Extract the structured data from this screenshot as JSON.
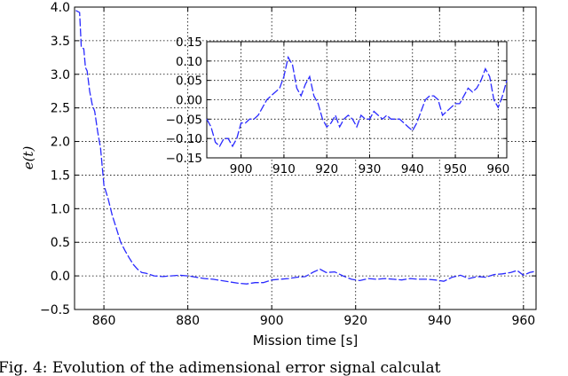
{
  "chart_data": [
    {
      "type": "line",
      "xlabel": "Mission time [s]",
      "ylabel": "e(t)",
      "xlim": [
        853,
        963
      ],
      "ylim": [
        -0.5,
        4.0
      ],
      "xticks": [
        860,
        880,
        900,
        920,
        940,
        960
      ],
      "xtick_labels": [
        "860",
        "880",
        "900",
        "920",
        "940",
        "960"
      ],
      "yticks": [
        -0.5,
        0.0,
        0.5,
        1.0,
        1.5,
        2.0,
        2.5,
        3.0,
        3.5,
        4.0
      ],
      "ytick_labels": [
        "−0.5",
        "0.0",
        "0.5",
        "1.0",
        "1.5",
        "2.0",
        "2.5",
        "3.0",
        "3.5",
        "4.0"
      ],
      "grid": true,
      "color": "#2a2aff",
      "x": [
        853.3,
        854.2,
        854.6,
        855.2,
        855.6,
        856.0,
        856.6,
        857.2,
        857.8,
        858.5,
        859.2,
        860.0,
        861.0,
        862.0,
        863.0,
        864.0,
        865.0,
        866.0,
        867.0,
        868.0,
        869.0,
        870.0,
        871.0,
        872.0,
        874.0,
        876.0,
        878.0,
        880.0,
        882.0,
        884.0,
        886.0,
        888.0,
        890.0,
        892.0,
        894.0,
        896.0,
        898.0,
        900.0,
        902.0,
        904.0,
        906.0,
        908.0,
        910.0,
        911.5,
        913.0,
        915.0,
        917.0,
        919.0,
        921.0,
        923.0,
        925.0,
        927.0,
        929.0,
        931.0,
        933.0,
        935.0,
        937.0,
        939.0,
        941.0,
        943.0,
        945.0,
        947.0,
        949.0,
        951.0,
        953.0,
        955.0,
        957.0,
        958.5,
        960.0,
        961.5,
        963.0
      ],
      "y": [
        3.95,
        3.92,
        3.4,
        3.38,
        3.1,
        3.05,
        2.75,
        2.55,
        2.45,
        2.15,
        1.9,
        1.35,
        1.15,
        0.9,
        0.7,
        0.5,
        0.38,
        0.27,
        0.17,
        0.1,
        0.05,
        0.04,
        0.02,
        0.0,
        -0.01,
        0.0,
        0.01,
        0.0,
        -0.02,
        -0.04,
        -0.05,
        -0.07,
        -0.09,
        -0.11,
        -0.12,
        -0.1,
        -0.1,
        -0.06,
        -0.05,
        -0.04,
        -0.02,
        -0.01,
        0.06,
        0.1,
        0.05,
        0.06,
        0.0,
        -0.05,
        -0.07,
        -0.04,
        -0.05,
        -0.04,
        -0.05,
        -0.06,
        -0.04,
        -0.05,
        -0.05,
        -0.06,
        -0.08,
        -0.02,
        0.01,
        -0.04,
        -0.01,
        -0.02,
        0.02,
        0.03,
        0.05,
        0.08,
        0.01,
        0.05,
        0.07
      ]
    },
    {
      "type": "line",
      "xlim": [
        892,
        962
      ],
      "ylim": [
        -0.15,
        0.15
      ],
      "xticks": [
        900,
        910,
        920,
        930,
        940,
        950,
        960
      ],
      "xtick_labels": [
        "900",
        "910",
        "920",
        "930",
        "940",
        "950",
        "960"
      ],
      "yticks": [
        -0.15,
        -0.1,
        -0.05,
        0.0,
        0.05,
        0.1,
        0.15
      ],
      "ytick_labels": [
        "−0.15",
        "−0.10",
        "−0.05",
        "0.00",
        "0.05",
        "0.10",
        "0.15"
      ],
      "grid": true,
      "color": "#2a2aff",
      "x": [
        892.0,
        893.0,
        894.0,
        895.0,
        896.0,
        897.0,
        898.0,
        899.0,
        900.0,
        901.0,
        902.0,
        903.0,
        904.0,
        905.0,
        906.0,
        907.0,
        908.0,
        909.0,
        910.0,
        911.0,
        912.0,
        913.0,
        914.0,
        915.0,
        916.0,
        917.0,
        918.0,
        919.0,
        920.0,
        921.0,
        922.0,
        923.0,
        924.0,
        925.0,
        926.0,
        927.0,
        928.0,
        929.0,
        930.0,
        931.0,
        932.0,
        933.0,
        934.0,
        935.0,
        936.0,
        937.0,
        938.0,
        939.0,
        940.0,
        941.0,
        942.0,
        943.0,
        944.0,
        945.0,
        946.0,
        947.0,
        948.0,
        949.0,
        950.0,
        951.0,
        952.0,
        953.0,
        954.0,
        955.0,
        956.0,
        957.0,
        958.0,
        959.0,
        960.0,
        961.0,
        962.0
      ],
      "y": [
        -0.05,
        -0.07,
        -0.11,
        -0.12,
        -0.1,
        -0.1,
        -0.12,
        -0.1,
        -0.06,
        -0.06,
        -0.05,
        -0.05,
        -0.04,
        -0.02,
        0.0,
        0.01,
        0.02,
        0.03,
        0.06,
        0.11,
        0.09,
        0.03,
        0.01,
        0.04,
        0.06,
        0.01,
        -0.01,
        -0.05,
        -0.07,
        -0.06,
        -0.04,
        -0.07,
        -0.05,
        -0.04,
        -0.05,
        -0.07,
        -0.04,
        -0.05,
        -0.05,
        -0.03,
        -0.04,
        -0.05,
        -0.04,
        -0.05,
        -0.05,
        -0.05,
        -0.06,
        -0.07,
        -0.08,
        -0.06,
        -0.03,
        0.0,
        0.01,
        0.01,
        0.0,
        -0.04,
        -0.03,
        -0.02,
        -0.01,
        -0.01,
        0.01,
        0.03,
        0.02,
        0.03,
        0.05,
        0.08,
        0.06,
        0.0,
        -0.02,
        0.01,
        0.05
      ]
    }
  ],
  "caption": "Fig. 4: Evolution of the adimensional error signal calculat"
}
